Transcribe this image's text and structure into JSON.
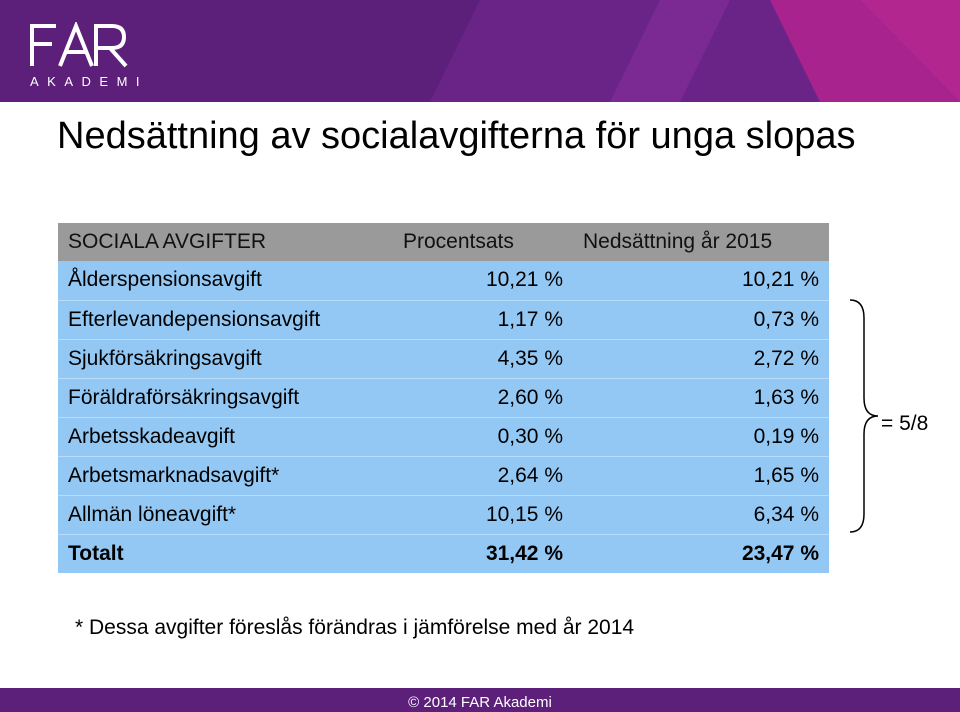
{
  "logo": {
    "word": "FAR",
    "subtitle": "AKADEMI"
  },
  "title": "Nedsättning av socialavgifterna för unga slopas",
  "table": {
    "headers": [
      "SOCIALA AVGIFTER",
      "Procentsats",
      "Nedsättning år 2015"
    ],
    "rows": [
      {
        "name": "Ålderspensionsavgift",
        "rate": "10,21 %",
        "reduction": "10,21 %"
      },
      {
        "name": "Efterlevandepensionsavgift",
        "rate": "1,17 %",
        "reduction": "0,73 %"
      },
      {
        "name": "Sjukförsäkringsavgift",
        "rate": "4,35 %",
        "reduction": "2,72 %"
      },
      {
        "name": "Föräldraförsäkringsavgift",
        "rate": "2,60 %",
        "reduction": "1,63 %"
      },
      {
        "name": "Arbetsskadeavgift",
        "rate": "0,30 %",
        "reduction": "0,19 %"
      },
      {
        "name": "Arbetsmarknadsavgift*",
        "rate": "2,64 %",
        "reduction": "1,65 %"
      },
      {
        "name": "Allmän löneavgift*",
        "rate": "10,15 %",
        "reduction": "6,34 %"
      }
    ],
    "total": {
      "name": "Totalt",
      "rate": "31,42 %",
      "reduction": "23,47 %"
    }
  },
  "brace_label": "= 5/8",
  "footnote": "* Dessa avgifter föreslås förändras i jämförelse med år 2014",
  "copyright": "© 2014 FAR Akademi",
  "colors": {
    "brand_purple": "#5c1f7a",
    "accent_magenta": "#a8238e",
    "header_row": "#9a9a9a",
    "body_rows": "#94c8f4"
  }
}
